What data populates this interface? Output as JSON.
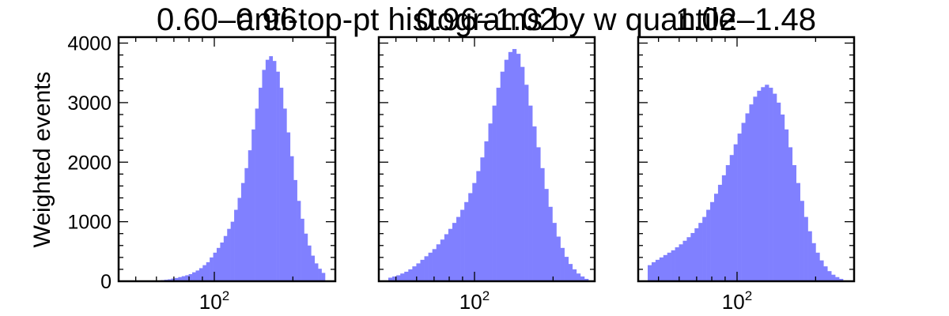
{
  "chart_data": [
    {
      "type": "bar",
      "title": "0.60–0.96",
      "ylabel": "Weighted events",
      "xscale": "log",
      "xtick_labels": [
        "10",
        "2"
      ],
      "yticks": [
        "0",
        "1000",
        "2000",
        "3000",
        "4000"
      ],
      "ylim": [
        0,
        4100
      ],
      "grid": false,
      "color": "#8080ff",
      "bins": 50,
      "values": [
        5,
        8,
        12,
        18,
        25,
        32,
        45,
        55,
        70,
        85,
        100,
        120,
        150,
        180,
        220,
        270,
        320,
        400,
        480,
        560,
        650,
        760,
        880,
        1000,
        1200,
        1400,
        1650,
        1900,
        2200,
        2550,
        2900,
        3250,
        3550,
        3720,
        3780,
        3700,
        3520,
        3250,
        2900,
        2500,
        2100,
        1700,
        1350,
        1050,
        800,
        600,
        430,
        300,
        210,
        140
      ]
    },
    {
      "type": "bar",
      "title": "0.96–1.02",
      "xscale": "log",
      "xtick_labels": [
        "10",
        "2"
      ],
      "ylim": [
        0,
        4100
      ],
      "grid": false,
      "color": "#8080ff",
      "bins": 50,
      "values": [
        60,
        80,
        100,
        130,
        160,
        200,
        250,
        300,
        360,
        420,
        480,
        540,
        620,
        700,
        790,
        880,
        980,
        1080,
        1200,
        1330,
        1480,
        1650,
        1850,
        2080,
        2350,
        2650,
        2950,
        3250,
        3520,
        3720,
        3850,
        3900,
        3820,
        3600,
        3300,
        2950,
        2600,
        2250,
        1900,
        1550,
        1250,
        980,
        750,
        560,
        410,
        290,
        200,
        130,
        80,
        40
      ]
    },
    {
      "type": "bar",
      "title": "1.02–1.48",
      "xscale": "log",
      "xtick_labels": [
        "10",
        "2"
      ],
      "ylim": [
        0,
        4100
      ],
      "grid": false,
      "color": "#8080ff",
      "bins": 50,
      "values": [
        270,
        320,
        360,
        400,
        440,
        480,
        520,
        570,
        620,
        680,
        740,
        810,
        890,
        980,
        1080,
        1200,
        1330,
        1470,
        1620,
        1780,
        1950,
        2120,
        2300,
        2480,
        2660,
        2820,
        2970,
        3100,
        3200,
        3260,
        3300,
        3250,
        3150,
        3000,
        2800,
        2550,
        2250,
        1950,
        1650,
        1350,
        1080,
        840,
        640,
        480,
        350,
        250,
        170,
        110,
        70,
        40
      ]
    }
  ],
  "overlay_title": "anti-top-pt histograms by w quantile"
}
